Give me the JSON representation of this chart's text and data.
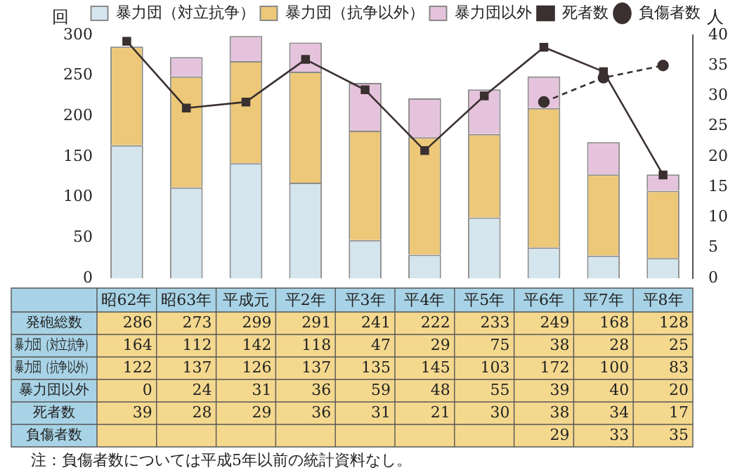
{
  "chart_data": {
    "type": "bar",
    "stacked": true,
    "ylabel": "回",
    "y2label": "人",
    "categories": [
      "昭62年",
      "昭63年",
      "平成元",
      "平2年",
      "平3年",
      "平4年",
      "平5年",
      "平6年",
      "平7年",
      "平8年"
    ],
    "series": [
      {
        "name": "暴力団（対立抗争）",
        "color": "#d4e5ee",
        "values": [
          164,
          112,
          142,
          118,
          47,
          29,
          75,
          38,
          28,
          25
        ]
      },
      {
        "name": "暴力団（抗争以外）",
        "color": "#ecc878",
        "values": [
          122,
          137,
          126,
          137,
          135,
          145,
          103,
          172,
          100,
          83
        ]
      },
      {
        "name": "暴力団以外",
        "color": "#e6c3dc",
        "values": [
          0,
          24,
          31,
          36,
          59,
          48,
          55,
          39,
          40,
          20
        ]
      },
      {
        "name": "死者数",
        "type": "line",
        "axis": "y2",
        "color": "#3a3030",
        "marker": "square",
        "line_style": "solid",
        "values": [
          39,
          28,
          29,
          36,
          31,
          21,
          30,
          38,
          34,
          17
        ]
      },
      {
        "name": "負傷者数",
        "type": "line",
        "axis": "y2",
        "color": "#3a3030",
        "marker": "circle",
        "line_style": "dashed",
        "values": [
          null,
          null,
          null,
          null,
          null,
          null,
          null,
          29,
          33,
          35
        ]
      }
    ],
    "totals": [
      "286",
      "273",
      "299",
      "291",
      "241",
      "222",
      "233",
      "249",
      "168",
      "128"
    ],
    "ylim": [
      0,
      300
    ],
    "yticks": [
      0,
      50,
      100,
      150,
      200,
      250,
      300
    ],
    "y2lim": [
      0,
      40
    ],
    "y2ticks": [
      0,
      5,
      10,
      15,
      20,
      25,
      30,
      35,
      40
    ],
    "grid": false,
    "legend": "top",
    "data_labels": true,
    "annotations": [
      "発砲総数",
      "注：負傷者数については平成5年以前の統計資料なし。"
    ]
  }
}
